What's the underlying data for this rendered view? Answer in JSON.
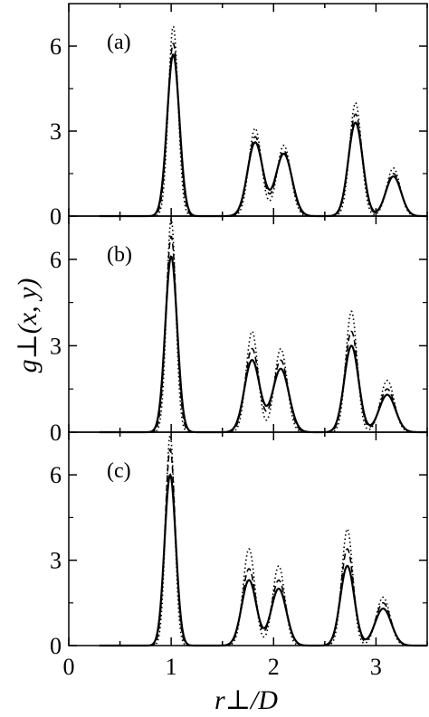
{
  "chart_data": {
    "type": "line",
    "xlabel": "r⊥/D",
    "ylabel": "g⊥(x, y)",
    "xlim": [
      0,
      3.5
    ],
    "xticks": [
      "0",
      "1",
      "2",
      "3"
    ],
    "grid": false,
    "legend": "none",
    "panels": [
      {
        "label": "(a)",
        "ylim": [
          0,
          7.5
        ],
        "yticks": [
          "0",
          "3",
          "6"
        ],
        "series": [
          {
            "style": "solid",
            "peaks": [
              [
                1.02,
                5.7,
                0.06
              ],
              [
                1.82,
                2.6,
                0.075
              ],
              [
                2.1,
                2.2,
                0.08
              ],
              [
                2.8,
                3.3,
                0.07
              ],
              [
                3.17,
                1.4,
                0.075
              ]
            ]
          },
          {
            "style": "dashed",
            "peaks": [
              [
                1.02,
                6.1,
                0.055
              ],
              [
                1.82,
                2.8,
                0.07
              ],
              [
                2.1,
                2.3,
                0.075
              ],
              [
                2.8,
                3.6,
                0.066
              ],
              [
                3.17,
                1.5,
                0.072
              ]
            ]
          },
          {
            "style": "dotted",
            "peaks": [
              [
                1.02,
                6.7,
                0.048
              ],
              [
                1.82,
                3.1,
                0.062
              ],
              [
                2.1,
                2.5,
                0.068
              ],
              [
                2.8,
                4.0,
                0.058
              ],
              [
                3.17,
                1.7,
                0.066
              ]
            ]
          }
        ]
      },
      {
        "label": "(b)",
        "ylim": [
          0,
          7.5
        ],
        "yticks": [
          "0",
          "3",
          "6"
        ],
        "series": [
          {
            "style": "solid",
            "peaks": [
              [
                1.0,
                6.1,
                0.058
              ],
              [
                1.79,
                2.5,
                0.075
              ],
              [
                2.07,
                2.2,
                0.08
              ],
              [
                2.76,
                3.0,
                0.07
              ],
              [
                3.11,
                1.3,
                0.08
              ]
            ]
          },
          {
            "style": "dashed",
            "peaks": [
              [
                1.0,
                6.8,
                0.052
              ],
              [
                1.79,
                2.9,
                0.068
              ],
              [
                2.07,
                2.5,
                0.072
              ],
              [
                2.76,
                3.5,
                0.064
              ],
              [
                3.11,
                1.5,
                0.075
              ]
            ]
          },
          {
            "style": "dotted",
            "peaks": [
              [
                1.0,
                7.4,
                0.045
              ],
              [
                1.79,
                3.5,
                0.058
              ],
              [
                2.07,
                2.9,
                0.062
              ],
              [
                2.76,
                4.2,
                0.055
              ],
              [
                3.11,
                1.8,
                0.068
              ]
            ]
          }
        ]
      },
      {
        "label": "(c)",
        "ylim": [
          0,
          7.5
        ],
        "yticks": [
          "0",
          "3",
          "6"
        ],
        "series": [
          {
            "style": "solid",
            "peaks": [
              [
                0.99,
                6.0,
                0.055
              ],
              [
                1.76,
                2.3,
                0.072
              ],
              [
                2.05,
                2.0,
                0.075
              ],
              [
                2.72,
                2.8,
                0.068
              ],
              [
                3.07,
                1.3,
                0.08
              ]
            ]
          },
          {
            "style": "dashed",
            "peaks": [
              [
                0.99,
                6.9,
                0.05
              ],
              [
                1.76,
                2.7,
                0.066
              ],
              [
                2.05,
                2.3,
                0.07
              ],
              [
                2.72,
                3.4,
                0.062
              ],
              [
                3.07,
                1.5,
                0.075
              ]
            ]
          },
          {
            "style": "dotted",
            "peaks": [
              [
                0.99,
                7.4,
                0.044
              ],
              [
                1.76,
                3.4,
                0.058
              ],
              [
                2.05,
                2.8,
                0.06
              ],
              [
                2.72,
                4.1,
                0.054
              ],
              [
                3.07,
                1.7,
                0.068
              ]
            ]
          }
        ]
      }
    ]
  }
}
